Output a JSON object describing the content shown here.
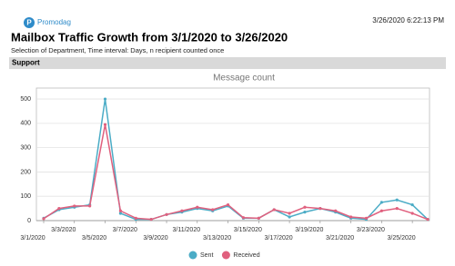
{
  "header": {
    "logo": "Promodag",
    "timestamp": "3/26/2020 6:22:13 PM",
    "title": "Mailbox Traffic Growth from 3/1/2020 to 3/26/2020",
    "subtitle": "Selection of Department, Time interval: Days, n recipient counted once",
    "section": "Support"
  },
  "chart_data": {
    "type": "line",
    "title": "Message count",
    "categories": [
      "3/1/2020",
      null,
      "3/3/2020",
      null,
      "3/5/2020",
      null,
      "3/7/2020",
      null,
      "3/9/2020",
      null,
      "3/11/2020",
      null,
      "3/13/2020",
      null,
      "3/15/2020",
      null,
      "3/17/2020",
      null,
      "3/19/2020",
      null,
      "3/21/2020",
      null,
      "3/23/2020",
      null,
      "3/25/2020",
      null
    ],
    "series": [
      {
        "name": "Sent",
        "color": "#4bacc6",
        "values": [
          10,
          45,
          55,
          65,
          500,
          30,
          5,
          5,
          25,
          35,
          50,
          40,
          60,
          10,
          10,
          45,
          15,
          35,
          50,
          35,
          10,
          5,
          75,
          85,
          65,
          5
        ]
      },
      {
        "name": "Received",
        "color": "#e0607e",
        "values": [
          8,
          50,
          60,
          60,
          395,
          40,
          10,
          5,
          25,
          40,
          55,
          45,
          65,
          12,
          10,
          45,
          30,
          55,
          50,
          40,
          15,
          10,
          40,
          50,
          30,
          5
        ]
      }
    ],
    "ylim": [
      0,
      545
    ],
    "yticks": [
      0,
      100,
      200,
      300,
      400,
      500
    ],
    "grid": true,
    "legend": "bottom"
  }
}
